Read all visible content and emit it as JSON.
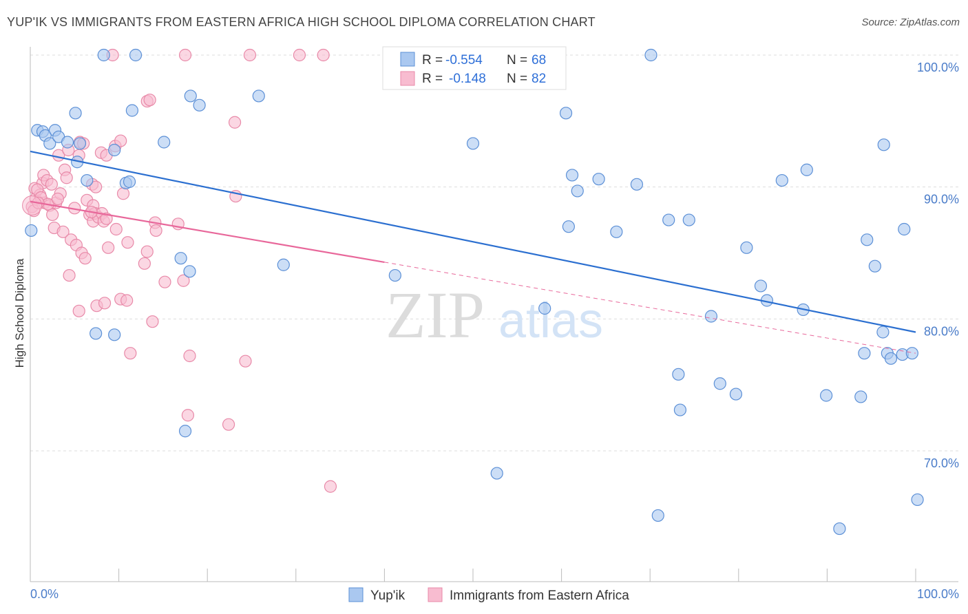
{
  "title": "YUP'IK VS IMMIGRANTS FROM EASTERN AFRICA HIGH SCHOOL DIPLOMA CORRELATION CHART",
  "source": "Source: ZipAtlas.com",
  "colors": {
    "series1_fill": "#aac8f0",
    "series1_stroke": "#5b8fd6",
    "series1_line": "#2b6fd0",
    "series2_fill": "#f8bcd0",
    "series2_stroke": "#e889a8",
    "series2_line": "#e8679a",
    "grid": "#dddddd",
    "axis_text": "#4a7cc9"
  },
  "legend": {
    "r_label": "R =",
    "n_label": "N =",
    "rows": [
      {
        "r": "-0.554",
        "n": "68"
      },
      {
        "r": "-0.148",
        "n": "82"
      }
    ]
  },
  "watermark": {
    "zip": "ZIP",
    "atlas": "atlas"
  },
  "chart_data": {
    "type": "scatter",
    "xlabel": "",
    "ylabel": "High School Diploma",
    "xlim": [
      0,
      100
    ],
    "ylim": [
      60,
      102
    ],
    "x_tick_labels": [
      "0.0%",
      "100.0%"
    ],
    "y_ticks": [
      70,
      80,
      90,
      100
    ],
    "y_tick_labels": [
      "70.0%",
      "80.0%",
      "90.0%",
      "100.0%"
    ],
    "grid": "horizontal dashed",
    "legend_placement": "top-center",
    "series": [
      {
        "name": "Yup'ik",
        "r": -0.554,
        "n": 68,
        "trend": {
          "x": [
            0,
            100
          ],
          "y": [
            92.7,
            79.0
          ]
        },
        "points": [
          [
            0.1,
            86.7
          ],
          [
            0.8,
            94.3
          ],
          [
            1.4,
            94.2
          ],
          [
            1.7,
            93.9
          ],
          [
            2.2,
            93.3
          ],
          [
            2.8,
            94.3
          ],
          [
            3.2,
            93.8
          ],
          [
            4.2,
            93.4
          ],
          [
            5.1,
            95.6
          ],
          [
            5.3,
            91.9
          ],
          [
            5.6,
            93.3
          ],
          [
            6.4,
            90.5
          ],
          [
            7.4,
            78.9
          ],
          [
            8.3,
            100
          ],
          [
            9.5,
            92.8
          ],
          [
            9.5,
            78.8
          ],
          [
            10.8,
            90.3
          ],
          [
            11.5,
            95.8
          ],
          [
            11.9,
            100
          ],
          [
            15.1,
            93.4
          ],
          [
            17,
            84.6
          ],
          [
            17.5,
            71.5
          ],
          [
            18,
            83.6
          ],
          [
            18.1,
            96.9
          ],
          [
            19.1,
            96.2
          ],
          [
            25.8,
            96.9
          ],
          [
            28.6,
            84.1
          ],
          [
            41.2,
            83.3
          ],
          [
            50,
            93.3
          ],
          [
            52.7,
            68.3
          ],
          [
            58.1,
            80.8
          ],
          [
            60.5,
            95.6
          ],
          [
            60.8,
            87
          ],
          [
            61.2,
            90.9
          ],
          [
            61.8,
            89.7
          ],
          [
            64.2,
            90.6
          ],
          [
            66.2,
            86.6
          ],
          [
            68.5,
            90.2
          ],
          [
            70.1,
            100
          ],
          [
            70.9,
            65.1
          ],
          [
            72.1,
            87.5
          ],
          [
            73.2,
            75.8
          ],
          [
            73.4,
            73.1
          ],
          [
            74.4,
            87.5
          ],
          [
            76.9,
            80.2
          ],
          [
            77.9,
            75.1
          ],
          [
            79.7,
            74.3
          ],
          [
            80.9,
            85.4
          ],
          [
            82.5,
            82.5
          ],
          [
            83.2,
            81.4
          ],
          [
            84.9,
            90.5
          ],
          [
            87.3,
            80.7
          ],
          [
            87.7,
            91.3
          ],
          [
            89.9,
            74.2
          ],
          [
            91.4,
            64.1
          ],
          [
            93.8,
            74.1
          ],
          [
            94.2,
            77.4
          ],
          [
            94.5,
            86
          ],
          [
            95.4,
            84
          ],
          [
            96.3,
            79
          ],
          [
            96.4,
            93.2
          ],
          [
            96.8,
            77.4
          ],
          [
            97.2,
            77
          ],
          [
            98.5,
            77.3
          ],
          [
            98.7,
            86.8
          ],
          [
            99.6,
            77.4
          ],
          [
            100.2,
            66.3
          ],
          [
            11.2,
            90.4
          ]
        ]
      },
      {
        "name": "Immigrants from Eastern Africa",
        "r": -0.148,
        "n": 82,
        "trend": {
          "x": [
            0,
            40
          ],
          "y": [
            88.9,
            84.3
          ],
          "dashed_x": [
            40,
            100
          ],
          "dashed_y": [
            84.3,
            77.4
          ]
        },
        "points": [
          [
            0.2,
            88.5
          ],
          [
            0.5,
            89.9
          ],
          [
            0.6,
            89.1
          ],
          [
            1.1,
            89.4
          ],
          [
            1.4,
            90.3
          ],
          [
            1.5,
            90.9
          ],
          [
            1.6,
            88.8
          ],
          [
            1.9,
            90.5
          ],
          [
            2.2,
            88.6
          ],
          [
            2.4,
            90.2
          ],
          [
            2.5,
            87.9
          ],
          [
            2.7,
            86.9
          ],
          [
            2.9,
            88.8
          ],
          [
            3.2,
            92.4
          ],
          [
            3.4,
            89.5
          ],
          [
            3.7,
            86.6
          ],
          [
            3.9,
            91.3
          ],
          [
            4.1,
            90.7
          ],
          [
            4.3,
            92.8
          ],
          [
            4.4,
            83.3
          ],
          [
            4.6,
            86
          ],
          [
            5,
            88.4
          ],
          [
            5.2,
            85.6
          ],
          [
            5.5,
            92.4
          ],
          [
            5.5,
            80.6
          ],
          [
            5.6,
            93.4
          ],
          [
            5.8,
            85
          ],
          [
            6,
            93.3
          ],
          [
            6.2,
            84.6
          ],
          [
            6.4,
            89
          ],
          [
            6.7,
            87.9
          ],
          [
            7,
            90.2
          ],
          [
            7.1,
            88.6
          ],
          [
            7.1,
            87.4
          ],
          [
            7.3,
            88
          ],
          [
            7.4,
            90
          ],
          [
            7.5,
            81
          ],
          [
            7.7,
            87.7
          ],
          [
            8,
            92.6
          ],
          [
            8.1,
            88
          ],
          [
            8.3,
            87.4
          ],
          [
            8.4,
            81.2
          ],
          [
            8.6,
            92.4
          ],
          [
            8.6,
            87.6
          ],
          [
            8.8,
            85.4
          ],
          [
            9.3,
            100
          ],
          [
            9.6,
            93.1
          ],
          [
            9.7,
            86.8
          ],
          [
            10.2,
            93.5
          ],
          [
            10.2,
            81.5
          ],
          [
            10.5,
            89.5
          ],
          [
            10.9,
            81.4
          ],
          [
            11,
            85.8
          ],
          [
            11.3,
            77.4
          ],
          [
            12.9,
            84.2
          ],
          [
            13.2,
            85.1
          ],
          [
            13.2,
            96.5
          ],
          [
            13.5,
            96.6
          ],
          [
            13.8,
            79.8
          ],
          [
            14.1,
            87.3
          ],
          [
            14.2,
            86.7
          ],
          [
            15.2,
            82.8
          ],
          [
            16.7,
            87.2
          ],
          [
            17.3,
            82.9
          ],
          [
            17.5,
            100
          ],
          [
            17.8,
            72.7
          ],
          [
            18,
            77.2
          ],
          [
            22.4,
            72
          ],
          [
            23.1,
            94.9
          ],
          [
            23.2,
            89.3
          ],
          [
            24.3,
            76.8
          ],
          [
            24.8,
            100
          ],
          [
            30.4,
            100
          ],
          [
            33.1,
            100
          ],
          [
            33.9,
            67.3
          ],
          [
            0.8,
            89.8
          ],
          [
            1.2,
            89.2
          ],
          [
            2,
            88.7
          ],
          [
            3.1,
            89.1
          ],
          [
            6.9,
            88.1
          ],
          [
            0.4,
            88.2
          ],
          [
            0.9,
            88.8
          ]
        ]
      }
    ]
  }
}
